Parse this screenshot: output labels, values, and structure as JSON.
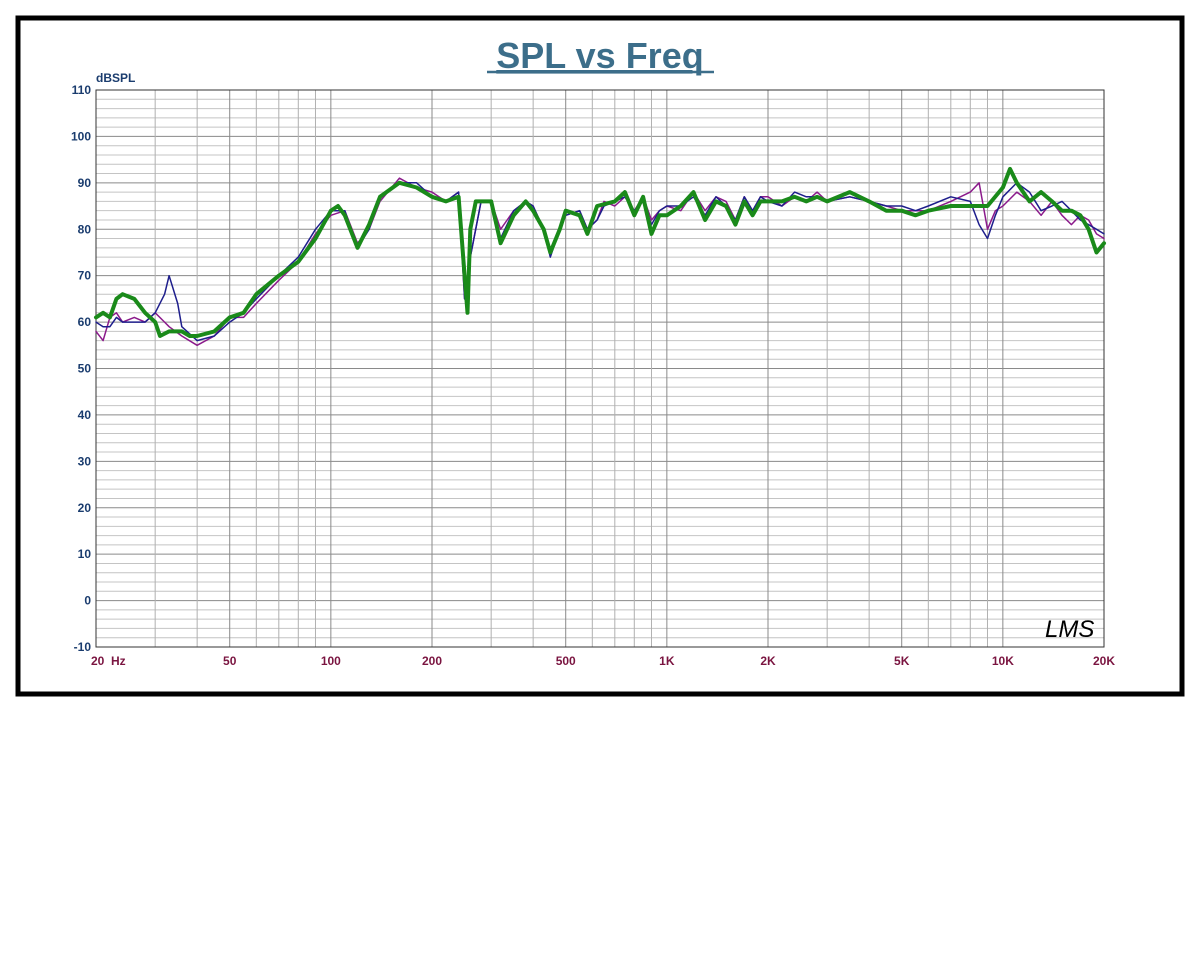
{
  "chart_data": {
    "type": "line",
    "title": "SPL vs Freq",
    "ylabel": "dBSPL",
    "xscale": "log",
    "xlim": [
      20,
      20000
    ],
    "ylim": [
      -10,
      110
    ],
    "grid": true,
    "y_ticks": [
      "110",
      "100",
      "90",
      "80",
      "70",
      "60",
      "50",
      "40",
      "30",
      "20",
      "10",
      "0",
      "-10"
    ],
    "x_tick_labels": [
      {
        "x": 20,
        "label": "20  Hz"
      },
      {
        "x": 50,
        "label": "50"
      },
      {
        "x": 100,
        "label": "100"
      },
      {
        "x": 200,
        "label": "200"
      },
      {
        "x": 500,
        "label": "500"
      },
      {
        "x": 1000,
        "label": "1K"
      },
      {
        "x": 2000,
        "label": "2K"
      },
      {
        "x": 5000,
        "label": "5K"
      },
      {
        "x": 10000,
        "label": "10K"
      },
      {
        "x": 20000,
        "label": "20K"
      }
    ],
    "watermark": "LMS",
    "colors": {
      "frame": "#000000",
      "title": "#3c6e8a",
      "y_ticks": "#1a3c6e",
      "x_ticks": "#7a1440",
      "grid": "#a0a0a0",
      "series_purple": "#8b1a8b",
      "series_navy": "#1e1e8c",
      "series_green": "#1a8a1a"
    },
    "series": [
      {
        "color": "#8b1a8b",
        "width": 1.5,
        "points": [
          [
            20,
            58
          ],
          [
            21,
            56
          ],
          [
            22,
            61
          ],
          [
            23,
            62
          ],
          [
            24,
            60
          ],
          [
            26,
            61
          ],
          [
            28,
            60
          ],
          [
            30,
            62
          ],
          [
            32,
            60
          ],
          [
            33,
            59
          ],
          [
            36,
            57
          ],
          [
            40,
            55
          ],
          [
            45,
            57
          ],
          [
            50,
            61
          ],
          [
            55,
            61
          ],
          [
            60,
            64
          ],
          [
            70,
            69
          ],
          [
            80,
            73
          ],
          [
            90,
            79
          ],
          [
            100,
            83
          ],
          [
            110,
            84
          ],
          [
            120,
            77
          ],
          [
            130,
            80
          ],
          [
            140,
            86
          ],
          [
            160,
            91
          ],
          [
            180,
            89
          ],
          [
            200,
            88
          ],
          [
            220,
            86
          ],
          [
            240,
            88
          ],
          [
            250,
            65
          ],
          [
            260,
            74
          ],
          [
            280,
            86
          ],
          [
            300,
            86
          ],
          [
            320,
            80
          ],
          [
            350,
            84
          ],
          [
            380,
            86
          ],
          [
            400,
            85
          ],
          [
            430,
            80
          ],
          [
            450,
            75
          ],
          [
            480,
            80
          ],
          [
            500,
            83
          ],
          [
            550,
            84
          ],
          [
            580,
            80
          ],
          [
            620,
            82
          ],
          [
            650,
            86
          ],
          [
            700,
            85
          ],
          [
            750,
            87
          ],
          [
            800,
            84
          ],
          [
            850,
            87
          ],
          [
            900,
            82
          ],
          [
            950,
            84
          ],
          [
            1000,
            85
          ],
          [
            1100,
            84
          ],
          [
            1200,
            88
          ],
          [
            1300,
            84
          ],
          [
            1400,
            87
          ],
          [
            1500,
            86
          ],
          [
            1600,
            82
          ],
          [
            1700,
            87
          ],
          [
            1800,
            84
          ],
          [
            1900,
            87
          ],
          [
            2000,
            87
          ],
          [
            2200,
            85
          ],
          [
            2400,
            87
          ],
          [
            2600,
            86
          ],
          [
            2800,
            88
          ],
          [
            3000,
            86
          ],
          [
            3500,
            87
          ],
          [
            4000,
            86
          ],
          [
            4500,
            85
          ],
          [
            5000,
            84
          ],
          [
            5500,
            84
          ],
          [
            6000,
            84
          ],
          [
            7000,
            86
          ],
          [
            8000,
            88
          ],
          [
            8500,
            90
          ],
          [
            9000,
            80
          ],
          [
            9500,
            84
          ],
          [
            10000,
            85
          ],
          [
            11000,
            88
          ],
          [
            12000,
            86
          ],
          [
            13000,
            83
          ],
          [
            14000,
            86
          ],
          [
            15000,
            83
          ],
          [
            16000,
            81
          ],
          [
            17000,
            83
          ],
          [
            18000,
            82
          ],
          [
            19000,
            79
          ],
          [
            20000,
            78
          ]
        ]
      },
      {
        "color": "#1e1e8c",
        "width": 1.5,
        "points": [
          [
            20,
            60
          ],
          [
            21,
            59
          ],
          [
            22,
            59
          ],
          [
            23,
            61
          ],
          [
            24,
            60
          ],
          [
            26,
            60
          ],
          [
            28,
            60
          ],
          [
            30,
            62
          ],
          [
            32,
            66
          ],
          [
            33,
            70
          ],
          [
            35,
            64
          ],
          [
            36,
            59
          ],
          [
            40,
            56
          ],
          [
            45,
            57
          ],
          [
            50,
            60
          ],
          [
            55,
            62
          ],
          [
            60,
            65
          ],
          [
            70,
            70
          ],
          [
            80,
            74
          ],
          [
            90,
            80
          ],
          [
            100,
            84
          ],
          [
            110,
            84
          ],
          [
            120,
            76
          ],
          [
            130,
            80
          ],
          [
            140,
            87
          ],
          [
            160,
            90
          ],
          [
            180,
            90
          ],
          [
            200,
            87
          ],
          [
            220,
            86
          ],
          [
            240,
            88
          ],
          [
            250,
            65
          ],
          [
            260,
            74
          ],
          [
            280,
            86
          ],
          [
            300,
            86
          ],
          [
            320,
            78
          ],
          [
            350,
            84
          ],
          [
            380,
            86
          ],
          [
            400,
            85
          ],
          [
            430,
            80
          ],
          [
            450,
            74
          ],
          [
            480,
            80
          ],
          [
            500,
            83
          ],
          [
            550,
            84
          ],
          [
            580,
            80
          ],
          [
            620,
            82
          ],
          [
            650,
            85
          ],
          [
            700,
            86
          ],
          [
            750,
            87
          ],
          [
            800,
            84
          ],
          [
            850,
            86
          ],
          [
            900,
            81
          ],
          [
            950,
            84
          ],
          [
            1000,
            85
          ],
          [
            1100,
            85
          ],
          [
            1200,
            87
          ],
          [
            1300,
            83
          ],
          [
            1400,
            87
          ],
          [
            1500,
            85
          ],
          [
            1600,
            82
          ],
          [
            1700,
            87
          ],
          [
            1800,
            84
          ],
          [
            1900,
            87
          ],
          [
            2000,
            86
          ],
          [
            2200,
            85
          ],
          [
            2400,
            88
          ],
          [
            2600,
            87
          ],
          [
            2800,
            87
          ],
          [
            3000,
            86
          ],
          [
            3500,
            87
          ],
          [
            4000,
            86
          ],
          [
            4500,
            85
          ],
          [
            5000,
            85
          ],
          [
            5500,
            84
          ],
          [
            6000,
            85
          ],
          [
            7000,
            87
          ],
          [
            8000,
            86
          ],
          [
            8500,
            81
          ],
          [
            9000,
            78
          ],
          [
            9500,
            83
          ],
          [
            10000,
            87
          ],
          [
            11000,
            90
          ],
          [
            12000,
            88
          ],
          [
            13000,
            84
          ],
          [
            14000,
            85
          ],
          [
            15000,
            86
          ],
          [
            16000,
            84
          ],
          [
            17000,
            82
          ],
          [
            18000,
            81
          ],
          [
            19000,
            80
          ],
          [
            20000,
            79
          ]
        ]
      },
      {
        "color": "#1a8a1a",
        "width": 4,
        "points": [
          [
            20,
            61
          ],
          [
            21,
            62
          ],
          [
            22,
            61
          ],
          [
            23,
            65
          ],
          [
            24,
            66
          ],
          [
            26,
            65
          ],
          [
            28,
            62
          ],
          [
            30,
            60
          ],
          [
            31,
            57
          ],
          [
            33,
            58
          ],
          [
            36,
            58
          ],
          [
            38,
            57
          ],
          [
            40,
            57
          ],
          [
            45,
            58
          ],
          [
            50,
            61
          ],
          [
            55,
            62
          ],
          [
            60,
            66
          ],
          [
            70,
            70
          ],
          [
            80,
            73
          ],
          [
            90,
            78
          ],
          [
            100,
            84
          ],
          [
            105,
            85
          ],
          [
            110,
            83
          ],
          [
            120,
            76
          ],
          [
            130,
            81
          ],
          [
            140,
            87
          ],
          [
            160,
            90
          ],
          [
            180,
            89
          ],
          [
            200,
            87
          ],
          [
            220,
            86
          ],
          [
            240,
            87
          ],
          [
            250,
            70
          ],
          [
            255,
            62
          ],
          [
            260,
            80
          ],
          [
            270,
            86
          ],
          [
            300,
            86
          ],
          [
            320,
            77
          ],
          [
            350,
            83
          ],
          [
            380,
            86
          ],
          [
            400,
            84
          ],
          [
            430,
            80
          ],
          [
            450,
            75
          ],
          [
            480,
            80
          ],
          [
            500,
            84
          ],
          [
            550,
            83
          ],
          [
            580,
            79
          ],
          [
            620,
            85
          ],
          [
            700,
            86
          ],
          [
            750,
            88
          ],
          [
            800,
            83
          ],
          [
            850,
            87
          ],
          [
            900,
            79
          ],
          [
            950,
            83
          ],
          [
            1000,
            83
          ],
          [
            1100,
            85
          ],
          [
            1200,
            88
          ],
          [
            1300,
            82
          ],
          [
            1400,
            86
          ],
          [
            1500,
            85
          ],
          [
            1600,
            81
          ],
          [
            1700,
            86
          ],
          [
            1800,
            83
          ],
          [
            1900,
            86
          ],
          [
            2000,
            86
          ],
          [
            2200,
            86
          ],
          [
            2400,
            87
          ],
          [
            2600,
            86
          ],
          [
            2800,
            87
          ],
          [
            3000,
            86
          ],
          [
            3500,
            88
          ],
          [
            4000,
            86
          ],
          [
            4500,
            84
          ],
          [
            5000,
            84
          ],
          [
            5500,
            83
          ],
          [
            6000,
            84
          ],
          [
            7000,
            85
          ],
          [
            8000,
            85
          ],
          [
            9000,
            85
          ],
          [
            10000,
            89
          ],
          [
            10500,
            93
          ],
          [
            11000,
            90
          ],
          [
            12000,
            86
          ],
          [
            13000,
            88
          ],
          [
            14000,
            86
          ],
          [
            15000,
            84
          ],
          [
            16000,
            84
          ],
          [
            17000,
            83
          ],
          [
            18000,
            80
          ],
          [
            19000,
            75
          ],
          [
            20000,
            77
          ]
        ]
      }
    ]
  }
}
